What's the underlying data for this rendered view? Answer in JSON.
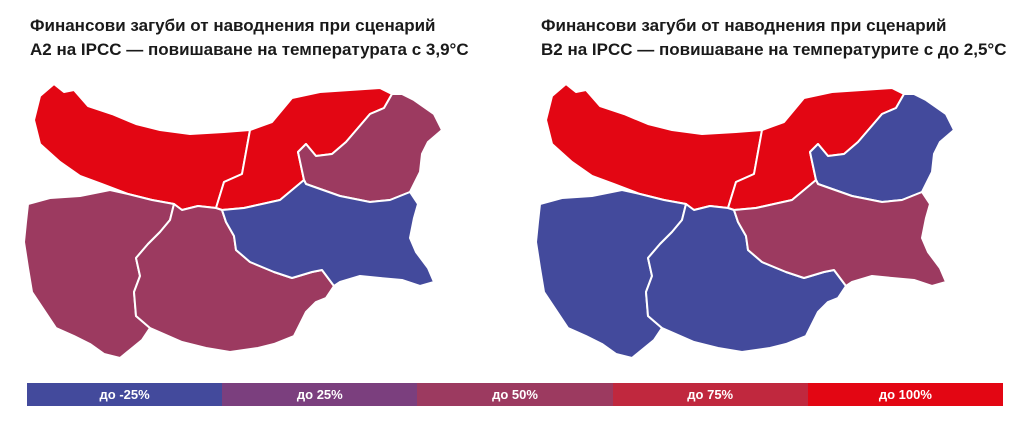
{
  "maps": [
    {
      "id": "a2",
      "title_line1": "Финансови загуби от наводнения при сценарий",
      "title_line2": "A2 на IPCC — повишаване на температурата с 3,9°C",
      "regions": {
        "northwest": "#e30613",
        "north_central": "#e30613",
        "northeast": "#9c3a60",
        "southwest": "#9c3a60",
        "south_central": "#9c3a60",
        "southeast": "#434a9c"
      }
    },
    {
      "id": "b2",
      "title_line1": "Финансови загуби от наводнения при сценарий",
      "title_line2": "B2 на IPCC — повишаване на температурите с до 2,5°C",
      "regions": {
        "northwest": "#e30613",
        "north_central": "#e30613",
        "northeast": "#434a9c",
        "southwest": "#434a9c",
        "south_central": "#434a9c",
        "southeast": "#9c3a60"
      }
    }
  ],
  "legend": [
    {
      "label": "до -25%",
      "color": "#434a9c"
    },
    {
      "label": "до 25%",
      "color": "#7b3f7e"
    },
    {
      "label": "до 50%",
      "color": "#9c3a60"
    },
    {
      "label": "до 75%",
      "color": "#c0283e"
    },
    {
      "label": "до 100%",
      "color": "#e30613"
    }
  ]
}
